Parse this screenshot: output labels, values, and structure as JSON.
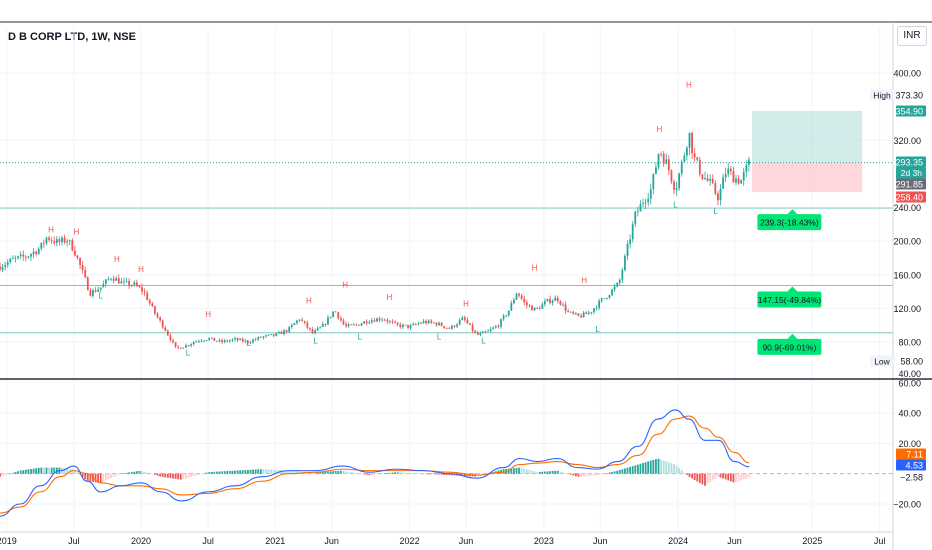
{
  "title": "D B CORP LTD, 1W, NSE",
  "currency_button": "INR",
  "colors": {
    "up": "#26a69a",
    "down": "#ef5350",
    "macd_line": "#2962ff",
    "signal_line": "#ff6d00",
    "hist_up": "#26a69a",
    "hist_down": "#ef5350",
    "target_zone": "#b2dfdb",
    "stop_zone": "#ffcdd2",
    "support_level": "#26a69a",
    "last_price": "#26a69a"
  },
  "chart_data": [
    {
      "type": "candlestick",
      "name": "price",
      "ylim": [
        40,
        420
      ],
      "y_ticks": [
        "400.00",
        "320.00",
        "240.00",
        "200.00",
        "160.00",
        "120.00",
        "80.00",
        "40.00"
      ],
      "x_ticks": [
        "2019",
        "Jul",
        "2020",
        "Jul",
        "2021",
        "Jun",
        "2022",
        "Jun",
        "2023",
        "Jun",
        "2024",
        "Jun",
        "2025",
        "Jul"
      ],
      "x_tick_times": [
        2019.0,
        2019.5,
        2020.0,
        2020.5,
        2021.0,
        2021.42,
        2022.0,
        2022.42,
        2023.0,
        2023.42,
        2024.0,
        2024.42,
        2025.0,
        2025.5
      ],
      "xlim": [
        2018.95,
        2025.6
      ],
      "close_path": [
        [
          2018.95,
          170
        ],
        [
          2019.05,
          178
        ],
        [
          2019.15,
          182
        ],
        [
          2019.25,
          192
        ],
        [
          2019.3,
          205
        ],
        [
          2019.38,
          198
        ],
        [
          2019.45,
          202
        ],
        [
          2019.5,
          190
        ],
        [
          2019.56,
          165
        ],
        [
          2019.62,
          138
        ],
        [
          2019.7,
          145
        ],
        [
          2019.78,
          158
        ],
        [
          2019.86,
          150
        ],
        [
          2019.95,
          148
        ],
        [
          2020.02,
          140
        ],
        [
          2020.1,
          115
        ],
        [
          2020.18,
          95
        ],
        [
          2020.26,
          72
        ],
        [
          2020.34,
          76
        ],
        [
          2020.42,
          82
        ],
        [
          2020.5,
          84
        ],
        [
          2020.6,
          80
        ],
        [
          2020.7,
          83
        ],
        [
          2020.8,
          80
        ],
        [
          2020.9,
          86
        ],
        [
          2021.0,
          88
        ],
        [
          2021.1,
          95
        ],
        [
          2021.18,
          108
        ],
        [
          2021.28,
          90
        ],
        [
          2021.36,
          100
        ],
        [
          2021.44,
          118
        ],
        [
          2021.52,
          98
        ],
        [
          2021.6,
          100
        ],
        [
          2021.7,
          106
        ],
        [
          2021.8,
          108
        ],
        [
          2021.9,
          100
        ],
        [
          2022.0,
          98
        ],
        [
          2022.1,
          104
        ],
        [
          2022.2,
          102
        ],
        [
          2022.3,
          96
        ],
        [
          2022.4,
          108
        ],
        [
          2022.5,
          88
        ],
        [
          2022.58,
          92
        ],
        [
          2022.66,
          100
        ],
        [
          2022.74,
          118
        ],
        [
          2022.8,
          140
        ],
        [
          2022.86,
          125
        ],
        [
          2022.94,
          118
        ],
        [
          2023.02,
          128
        ],
        [
          2023.1,
          132
        ],
        [
          2023.18,
          115
        ],
        [
          2023.26,
          110
        ],
        [
          2023.34,
          115
        ],
        [
          2023.42,
          128
        ],
        [
          2023.5,
          140
        ],
        [
          2023.56,
          150
        ],
        [
          2023.62,
          190
        ],
        [
          2023.68,
          230
        ],
        [
          2023.74,
          248
        ],
        [
          2023.8,
          262
        ],
        [
          2023.86,
          310
        ],
        [
          2023.92,
          290
        ],
        [
          2023.98,
          262
        ],
        [
          2024.04,
          300
        ],
        [
          2024.08,
          330
        ],
        [
          2024.12,
          298
        ],
        [
          2024.18,
          278
        ],
        [
          2024.24,
          268
        ],
        [
          2024.3,
          252
        ],
        [
          2024.36,
          285
        ],
        [
          2024.42,
          275
        ],
        [
          2024.47,
          272
        ],
        [
          2024.53,
          293.35
        ]
      ],
      "high_labels": [
        {
          "x": 2019.33,
          "y": 210,
          "text": "H"
        },
        {
          "x": 2019.52,
          "y": 208,
          "text": "H"
        },
        {
          "x": 2019.82,
          "y": 175,
          "text": "H"
        },
        {
          "x": 2020.0,
          "y": 163,
          "text": "H"
        },
        {
          "x": 2020.5,
          "y": 110,
          "text": "H"
        },
        {
          "x": 2021.25,
          "y": 126,
          "text": "H"
        },
        {
          "x": 2021.52,
          "y": 145,
          "text": "H"
        },
        {
          "x": 2021.85,
          "y": 130,
          "text": "H"
        },
        {
          "x": 2022.42,
          "y": 122,
          "text": "H"
        },
        {
          "x": 2022.93,
          "y": 165,
          "text": "H"
        },
        {
          "x": 2023.3,
          "y": 150,
          "text": "H"
        },
        {
          "x": 2023.86,
          "y": 330,
          "text": "H"
        },
        {
          "x": 2024.08,
          "y": 383,
          "text": "H"
        }
      ],
      "low_labels": [
        {
          "x": 2019.7,
          "y": 132,
          "text": "L"
        },
        {
          "x": 2020.35,
          "y": 64,
          "text": "L"
        },
        {
          "x": 2020.8,
          "y": 75,
          "text": "L"
        },
        {
          "x": 2021.3,
          "y": 78,
          "text": "L"
        },
        {
          "x": 2021.63,
          "y": 83,
          "text": "L"
        },
        {
          "x": 2022.22,
          "y": 83,
          "text": "L"
        },
        {
          "x": 2022.55,
          "y": 78,
          "text": "L"
        },
        {
          "x": 2023.4,
          "y": 92,
          "text": "L"
        },
        {
          "x": 2023.98,
          "y": 240,
          "text": "L"
        },
        {
          "x": 2024.28,
          "y": 232,
          "text": "L"
        }
      ],
      "support_levels": [
        {
          "value": 239.3,
          "label": "239.3(-18.43%)"
        },
        {
          "value": 147.15,
          "label": "147.15(-49.84%)"
        },
        {
          "value": 90.9,
          "label": "90.9(-69.01%)"
        }
      ],
      "position": {
        "x_start": 2024.55,
        "x_end": 2025.37,
        "entry": 293.35,
        "target": 354.9,
        "stop": 258.4
      },
      "axis_labels": [
        {
          "value": 373.3,
          "text": "373.30",
          "style": "plain",
          "caption": "High"
        },
        {
          "value": 354.9,
          "text": "354.90",
          "style": "up"
        },
        {
          "value": 293.35,
          "text": "293.35",
          "style": "up",
          "sub": "2d 3h"
        },
        {
          "value": 291.85,
          "text": "291.85",
          "style": "gray"
        },
        {
          "value": 258.4,
          "text": "258.40",
          "style": "down"
        },
        {
          "value": 58.0,
          "text": "58.00",
          "style": "plain",
          "caption": "Low"
        }
      ]
    },
    {
      "type": "macd",
      "name": "MACD",
      "ylim": [
        -30,
        60
      ],
      "y_ticks": [
        "60.00",
        "40.00",
        "20.00",
        "−20.00"
      ],
      "macd_path": [
        [
          2018.95,
          -28
        ],
        [
          2019.1,
          -20
        ],
        [
          2019.25,
          -8
        ],
        [
          2019.4,
          2
        ],
        [
          2019.5,
          5
        ],
        [
          2019.6,
          -5
        ],
        [
          2019.7,
          -12
        ],
        [
          2019.85,
          -8
        ],
        [
          2020.0,
          -6
        ],
        [
          2020.15,
          -12
        ],
        [
          2020.3,
          -18
        ],
        [
          2020.5,
          -12
        ],
        [
          2020.7,
          -8
        ],
        [
          2020.9,
          -2
        ],
        [
          2021.1,
          2
        ],
        [
          2021.3,
          2
        ],
        [
          2021.5,
          5
        ],
        [
          2021.7,
          1
        ],
        [
          2021.9,
          3
        ],
        [
          2022.1,
          2
        ],
        [
          2022.3,
          0
        ],
        [
          2022.5,
          -3
        ],
        [
          2022.7,
          4
        ],
        [
          2022.82,
          10
        ],
        [
          2022.95,
          8
        ],
        [
          2023.1,
          10
        ],
        [
          2023.25,
          4
        ],
        [
          2023.4,
          3
        ],
        [
          2023.55,
          8
        ],
        [
          2023.7,
          18
        ],
        [
          2023.85,
          36
        ],
        [
          2023.98,
          42
        ],
        [
          2024.08,
          36
        ],
        [
          2024.2,
          22
        ],
        [
          2024.3,
          22
        ],
        [
          2024.42,
          8
        ],
        [
          2024.53,
          4.53
        ]
      ],
      "signal_path": [
        [
          2018.95,
          -26
        ],
        [
          2019.1,
          -22
        ],
        [
          2019.25,
          -12
        ],
        [
          2019.4,
          -2
        ],
        [
          2019.5,
          2
        ],
        [
          2019.6,
          0
        ],
        [
          2019.7,
          -6
        ],
        [
          2019.85,
          -8
        ],
        [
          2020.0,
          -8
        ],
        [
          2020.15,
          -10
        ],
        [
          2020.3,
          -14
        ],
        [
          2020.5,
          -13
        ],
        [
          2020.7,
          -10
        ],
        [
          2020.9,
          -5
        ],
        [
          2021.1,
          0
        ],
        [
          2021.3,
          1
        ],
        [
          2021.5,
          3
        ],
        [
          2021.7,
          2
        ],
        [
          2021.9,
          2
        ],
        [
          2022.1,
          2
        ],
        [
          2022.3,
          1
        ],
        [
          2022.5,
          -1
        ],
        [
          2022.7,
          1
        ],
        [
          2022.82,
          6
        ],
        [
          2022.95,
          7
        ],
        [
          2023.1,
          8
        ],
        [
          2023.25,
          6
        ],
        [
          2023.4,
          4
        ],
        [
          2023.55,
          6
        ],
        [
          2023.7,
          12
        ],
        [
          2023.85,
          26
        ],
        [
          2023.98,
          36
        ],
        [
          2024.08,
          38
        ],
        [
          2024.2,
          30
        ],
        [
          2024.3,
          24
        ],
        [
          2024.42,
          14
        ],
        [
          2024.53,
          7.11
        ]
      ],
      "axis_labels": [
        {
          "value": 7.11,
          "text": "7.11",
          "style": "orange"
        },
        {
          "value": 4.53,
          "text": "4.53",
          "style": "blue"
        },
        {
          "value": -2.58,
          "text": "−2.58",
          "style": "plain"
        }
      ]
    }
  ]
}
